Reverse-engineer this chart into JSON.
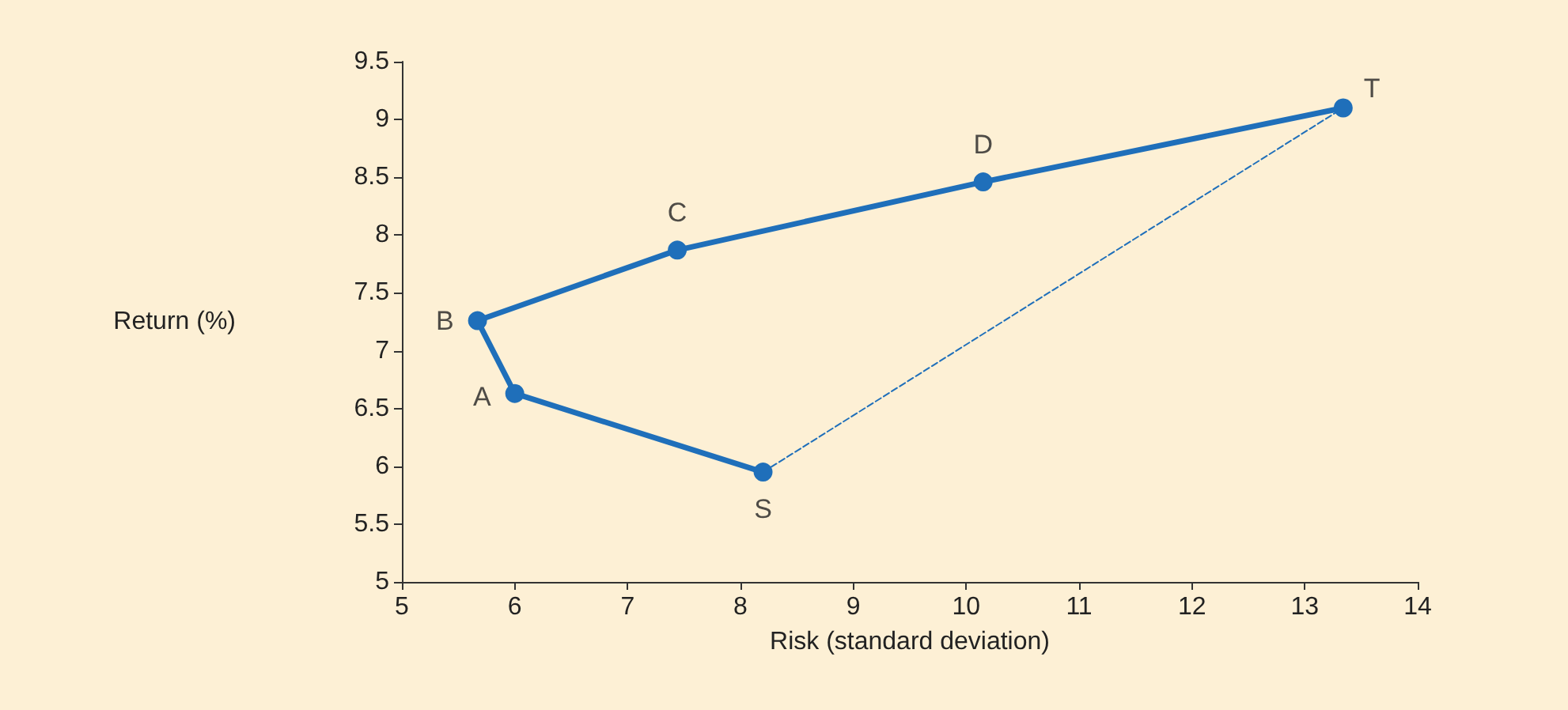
{
  "chart_data": {
    "type": "line",
    "xlabel": "Risk (standard deviation)",
    "ylabel": "Return (%)",
    "xlim": [
      5,
      14
    ],
    "xticks": [
      5,
      6,
      7,
      8,
      9,
      10,
      11,
      12,
      13,
      14
    ],
    "ylim": [
      5,
      9.5
    ],
    "yticks": [
      5,
      5.5,
      6,
      6.5,
      7,
      7.5,
      8,
      8.5,
      9,
      9.5
    ],
    "grid": false,
    "series": [
      {
        "color": "#1f6fba",
        "marker": "circle",
        "line_style": "solid",
        "x": [
          8.2,
          6.0,
          5.67,
          7.44,
          10.15,
          13.34
        ],
        "values": [
          5.95,
          6.63,
          7.26,
          7.87,
          8.46,
          9.1
        ]
      },
      {
        "color": "#1f6fba",
        "marker": "none",
        "line_style": "dashed",
        "x": [
          8.2,
          13.34
        ],
        "values": [
          5.95,
          9.1
        ]
      }
    ],
    "annotations": [
      {
        "text": "S",
        "x": 8.2,
        "y": 5.95
      },
      {
        "text": "A",
        "x": 6.0,
        "y": 6.63
      },
      {
        "text": "B",
        "x": 5.67,
        "y": 7.26
      },
      {
        "text": "C",
        "x": 7.44,
        "y": 7.87
      },
      {
        "text": "D",
        "x": 10.15,
        "y": 8.46
      },
      {
        "text": "T",
        "x": 13.34,
        "y": 9.1
      }
    ]
  }
}
